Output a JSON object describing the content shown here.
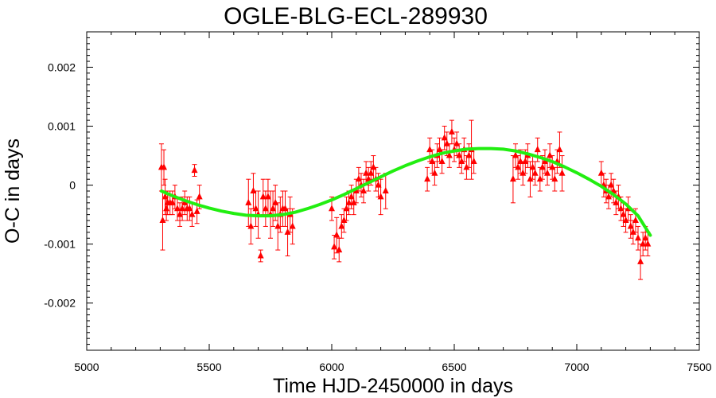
{
  "chart_data": {
    "type": "scatter",
    "title": "OGLE-BLG-ECL-289930",
    "xlabel": "Time HJD-2450000 in days",
    "ylabel": "O-C in days",
    "xlim": [
      5000,
      7500
    ],
    "ylim": [
      -0.0028,
      0.0026
    ],
    "xticks": [
      5000,
      5500,
      6000,
      6500,
      7000,
      7500
    ],
    "xtick_labels": [
      "5000",
      "5500",
      "6000",
      "6500",
      "7000",
      "7500"
    ],
    "yticks": [
      -0.002,
      -0.001,
      0,
      0.001,
      0.002
    ],
    "ytick_labels": [
      "-0.002",
      "-0.001",
      "0",
      "0.001",
      "0.002"
    ],
    "grid": false,
    "colors": {
      "points": "#ff0000",
      "fit": "#22ee11"
    },
    "series": [
      {
        "kind": "points",
        "x": [
          5305,
          5310,
          5315,
          5320,
          5325,
          5330,
          5340,
          5350,
          5360,
          5370,
          5380,
          5390,
          5400,
          5410,
          5420,
          5430,
          5440,
          5450,
          5460,
          5660,
          5670,
          5680,
          5690,
          5700,
          5710,
          5720,
          5730,
          5740,
          5750,
          5760,
          5770,
          5780,
          5790,
          5800,
          5810,
          5820,
          5830,
          5840,
          6000,
          6010,
          6020,
          6030,
          6040,
          6050,
          6060,
          6070,
          6080,
          6090,
          6100,
          6110,
          6120,
          6130,
          6140,
          6150,
          6160,
          6170,
          6180,
          6190,
          6200,
          6220,
          6390,
          6400,
          6410,
          6420,
          6430,
          6440,
          6450,
          6460,
          6470,
          6480,
          6490,
          6500,
          6510,
          6520,
          6530,
          6540,
          6550,
          6560,
          6570,
          6580,
          6740,
          6750,
          6760,
          6770,
          6780,
          6790,
          6800,
          6810,
          6820,
          6830,
          6840,
          6850,
          6860,
          6870,
          6880,
          6890,
          6900,
          6910,
          6920,
          6930,
          6940,
          7100,
          7110,
          7120,
          7130,
          7140,
          7150,
          7160,
          7170,
          7180,
          7190,
          7200,
          7210,
          7220,
          7230,
          7240,
          7250,
          7260,
          7270,
          7280,
          7290
        ],
        "y": [
          0.0003,
          -0.0006,
          0.0003,
          -0.0002,
          -0.0004,
          -0.0003,
          -0.0003,
          -0.0003,
          -0.0002,
          -0.0004,
          -0.0005,
          -0.0004,
          -0.0003,
          -0.0004,
          -0.0004,
          -0.0005,
          0.00025,
          -0.00045,
          -0.0002,
          -0.0003,
          -0.0007,
          -0.0001,
          -0.0004,
          -0.0005,
          -0.0012,
          -0.0002,
          -0.0004,
          -0.0002,
          -0.0005,
          -0.0004,
          -0.0003,
          -0.0007,
          -0.0005,
          -0.0004,
          -0.0004,
          -0.0008,
          -0.0005,
          -0.0007,
          -0.0004,
          -0.00105,
          -0.00085,
          -0.0011,
          -0.0007,
          -0.0006,
          -0.0004,
          -0.0003,
          -0.0002,
          -0.0003,
          -0.0001,
          0.0001,
          0.0,
          -0.0001,
          0.0002,
          0.0001,
          0.0002,
          0.0003,
          0.0001,
          0.0,
          -0.0002,
          -0.0001,
          0.0001,
          0.0006,
          0.0004,
          0.0002,
          0.0005,
          0.0006,
          0.0004,
          0.0008,
          0.0007,
          0.0005,
          0.0009,
          0.0006,
          0.0007,
          0.0005,
          0.0004,
          0.0006,
          0.0003,
          0.0005,
          0.0006,
          0.0004,
          0.0001,
          0.0005,
          0.0003,
          0.0004,
          0.0002,
          0.0004,
          0.0005,
          0.0001,
          0.0003,
          0.0002,
          0.0006,
          0.0001,
          0.0003,
          0.0004,
          0.0002,
          0.0005,
          0.0003,
          0.0001,
          0.0004,
          0.0006,
          0.0002,
          0.0002,
          0.0,
          -0.0001,
          -0.0002,
          0.0,
          -0.0001,
          -0.0003,
          -0.0002,
          -0.0004,
          -0.0005,
          -0.0006,
          -0.0004,
          -0.0007,
          -0.0008,
          -0.0006,
          -0.0009,
          -0.0013,
          -0.001,
          -0.0009,
          -0.001
        ],
        "err": [
          0.0004,
          0.0005,
          0.0003,
          0.0003,
          0.0002,
          0.0002,
          0.0002,
          0.0002,
          0.0002,
          0.0002,
          0.0002,
          0.0002,
          0.0002,
          0.0002,
          0.0002,
          0.0002,
          0.0001,
          0.0002,
          0.0002,
          0.0004,
          0.0003,
          0.0003,
          0.0003,
          0.0004,
          0.0001,
          0.0003,
          0.0003,
          0.0003,
          0.0004,
          0.0003,
          0.0003,
          0.0004,
          0.0003,
          0.0003,
          0.0003,
          0.0004,
          0.0003,
          0.0003,
          0.0002,
          0.0002,
          0.0003,
          0.0002,
          0.0002,
          0.0002,
          0.0002,
          0.0002,
          0.0002,
          0.0002,
          0.0002,
          0.0002,
          0.0002,
          0.0002,
          0.0002,
          0.0002,
          0.0002,
          0.0002,
          0.0002,
          0.0002,
          0.0003,
          0.0003,
          0.0002,
          0.0002,
          0.0002,
          0.0002,
          0.0002,
          0.0002,
          0.0002,
          0.0002,
          0.0002,
          0.0002,
          0.0002,
          0.0002,
          0.0002,
          0.0002,
          0.0002,
          0.0002,
          0.0002,
          0.0002,
          0.0005,
          0.0002,
          0.0004,
          0.0002,
          0.0002,
          0.0002,
          0.0002,
          0.0002,
          0.0002,
          0.0003,
          0.0002,
          0.0002,
          0.0002,
          0.0002,
          0.0002,
          0.0002,
          0.0002,
          0.0002,
          0.0002,
          0.0002,
          0.0002,
          0.0003,
          0.0003,
          0.0002,
          0.0002,
          0.0002,
          0.0002,
          0.0002,
          0.0002,
          0.0002,
          0.0002,
          0.0002,
          0.0002,
          0.0002,
          0.0002,
          0.0002,
          0.0002,
          0.0002,
          0.0002,
          0.0003,
          0.0002,
          0.0002,
          0.0002
        ]
      },
      {
        "kind": "fit",
        "x": [
          5305,
          5350,
          5400,
          5450,
          5500,
          5550,
          5600,
          5650,
          5700,
          5750,
          5800,
          5850,
          5900,
          5950,
          6000,
          6050,
          6100,
          6150,
          6200,
          6250,
          6300,
          6350,
          6400,
          6450,
          6500,
          6550,
          6600,
          6650,
          6700,
          6750,
          6800,
          6850,
          6900,
          6950,
          7000,
          7050,
          7100,
          7150,
          7200,
          7250,
          7300
        ],
        "y": [
          -0.0001,
          -0.00018,
          -0.00026,
          -0.00033,
          -0.00039,
          -0.00044,
          -0.00048,
          -0.00051,
          -0.00052,
          -0.00052,
          -0.0005,
          -0.00046,
          -0.0004,
          -0.00033,
          -0.00025,
          -0.00016,
          -6e-05,
          4e-05,
          0.00014,
          0.00024,
          0.00033,
          0.00041,
          0.00048,
          0.00054,
          0.00058,
          0.00061,
          0.00062,
          0.00062,
          0.00061,
          0.00058,
          0.00053,
          0.00047,
          0.0004,
          0.00031,
          0.00021,
          0.0001,
          -2e-05,
          -0.00016,
          -0.00032,
          -0.00052,
          -0.00085
        ]
      }
    ]
  }
}
